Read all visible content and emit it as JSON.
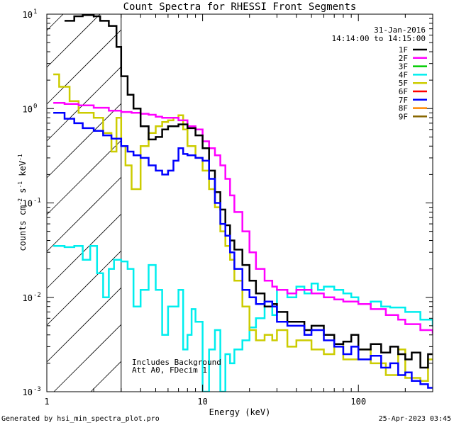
{
  "chart_data": {
    "type": "line",
    "title": "Count Spectra for RHESSI Front Segments",
    "xlabel": "Energy (keV)",
    "ylabel_parts": {
      "base": "counts cm",
      "e1": "-2",
      "mid": " s",
      "e2": "-1",
      "tail": " keV",
      "e3": "-1"
    },
    "x_scale": "log",
    "y_scale": "log",
    "xlim": [
      1,
      300
    ],
    "ylim": [
      0.001,
      10
    ],
    "x_ticks": [
      {
        "value": 1,
        "label": "1"
      },
      {
        "value": 10,
        "label": "10"
      },
      {
        "value": 100,
        "label": "100"
      }
    ],
    "y_ticks": [
      {
        "value": 10,
        "mant": "10",
        "exp": "1"
      },
      {
        "value": 1,
        "mant": "10",
        "exp": "0"
      },
      {
        "value": 0.1,
        "mant": "10",
        "exp": "-1"
      },
      {
        "value": 0.01,
        "mant": "10",
        "exp": "-2"
      },
      {
        "value": 0.001,
        "mant": "10",
        "exp": "-3"
      }
    ],
    "legend_header": [
      "31-Jan-2016",
      "14:14:00 to 14:15:00"
    ],
    "legend_placement": "top-right",
    "attenuator_shading": {
      "from": 1,
      "to": 3,
      "style": "hatched"
    },
    "annotations": [
      "Includes Background",
      "Att A0, FDecim 1"
    ],
    "footer_left": "Generated by hsi_min_spectra_plot.pro",
    "footer_right": "25-Apr-2023 03:45",
    "series": [
      {
        "name": "1F",
        "color": "#000000",
        "points": [
          [
            1.3,
            8.5
          ],
          [
            1.5,
            9.5
          ],
          [
            1.7,
            9.8
          ],
          [
            2.0,
            9.5
          ],
          [
            2.2,
            8.5
          ],
          [
            2.5,
            7.5
          ],
          [
            2.8,
            4.5
          ],
          [
            3.0,
            2.2
          ],
          [
            3.3,
            1.4
          ],
          [
            3.6,
            1.0
          ],
          [
            4.0,
            0.65
          ],
          [
            4.5,
            0.47
          ],
          [
            5.0,
            0.5
          ],
          [
            5.5,
            0.6
          ],
          [
            6.0,
            0.65
          ],
          [
            7.0,
            0.68
          ],
          [
            8.0,
            0.62
          ],
          [
            9.0,
            0.52
          ],
          [
            10,
            0.38
          ],
          [
            11,
            0.22
          ],
          [
            12,
            0.13
          ],
          [
            13,
            0.085
          ],
          [
            14,
            0.058
          ],
          [
            15,
            0.04
          ],
          [
            16,
            0.032
          ],
          [
            18,
            0.022
          ],
          [
            20,
            0.015
          ],
          [
            22,
            0.011
          ],
          [
            25,
            0.008
          ],
          [
            28,
            0.0085
          ],
          [
            30,
            0.007
          ],
          [
            35,
            0.0055
          ],
          [
            40,
            0.0055
          ],
          [
            45,
            0.0045
          ],
          [
            50,
            0.005
          ],
          [
            60,
            0.004
          ],
          [
            70,
            0.0032
          ],
          [
            80,
            0.0034
          ],
          [
            90,
            0.004
          ],
          [
            100,
            0.0028
          ],
          [
            120,
            0.0032
          ],
          [
            140,
            0.0026
          ],
          [
            160,
            0.003
          ],
          [
            180,
            0.0025
          ],
          [
            200,
            0.0022
          ],
          [
            220,
            0.0026
          ],
          [
            250,
            0.0018
          ],
          [
            280,
            0.0025
          ]
        ]
      },
      {
        "name": "2F",
        "color": "#ff00ff",
        "points": [
          [
            1.1,
            1.15
          ],
          [
            1.3,
            1.12
          ],
          [
            1.6,
            1.08
          ],
          [
            2.0,
            1.02
          ],
          [
            2.5,
            0.95
          ],
          [
            3.0,
            0.92
          ],
          [
            3.5,
            0.9
          ],
          [
            4.0,
            0.88
          ],
          [
            4.5,
            0.86
          ],
          [
            5.0,
            0.82
          ],
          [
            5.5,
            0.8
          ],
          [
            6.0,
            0.8
          ],
          [
            7.0,
            0.75
          ],
          [
            8.0,
            0.65
          ],
          [
            9.0,
            0.6
          ],
          [
            10,
            0.45
          ],
          [
            11,
            0.38
          ],
          [
            12,
            0.32
          ],
          [
            13,
            0.25
          ],
          [
            14,
            0.18
          ],
          [
            15,
            0.12
          ],
          [
            16,
            0.08
          ],
          [
            18,
            0.05
          ],
          [
            20,
            0.03
          ],
          [
            22,
            0.02
          ],
          [
            25,
            0.015
          ],
          [
            28,
            0.013
          ],
          [
            30,
            0.012
          ],
          [
            35,
            0.011
          ],
          [
            40,
            0.012
          ],
          [
            50,
            0.011
          ],
          [
            60,
            0.01
          ],
          [
            70,
            0.0095
          ],
          [
            80,
            0.009
          ],
          [
            100,
            0.0085
          ],
          [
            120,
            0.0075
          ],
          [
            150,
            0.0065
          ],
          [
            180,
            0.0058
          ],
          [
            200,
            0.0052
          ],
          [
            250,
            0.0045
          ],
          [
            300,
            0.0042
          ]
        ]
      },
      {
        "name": "3F",
        "color": "#00cc00",
        "points": []
      },
      {
        "name": "4F",
        "color": "#00eeee",
        "points": [
          [
            1.1,
            0.035
          ],
          [
            1.3,
            0.034
          ],
          [
            1.5,
            0.035
          ],
          [
            1.7,
            0.025
          ],
          [
            1.9,
            0.035
          ],
          [
            2.1,
            0.018
          ],
          [
            2.3,
            0.01
          ],
          [
            2.5,
            0.02
          ],
          [
            2.7,
            0.025
          ],
          [
            3.0,
            0.024
          ],
          [
            3.3,
            0.02
          ],
          [
            3.6,
            0.008
          ],
          [
            4.0,
            0.012
          ],
          [
            4.5,
            0.022
          ],
          [
            5.0,
            0.012
          ],
          [
            5.5,
            0.004
          ],
          [
            6.0,
            0.008
          ],
          [
            7.0,
            0.012
          ],
          [
            7.5,
            0.0028
          ],
          [
            8.0,
            0.004
          ],
          [
            8.5,
            0.0075
          ],
          [
            9.0,
            0.0055
          ],
          [
            10,
            0.001
          ],
          [
            11,
            0.0028
          ],
          [
            12,
            0.0045
          ],
          [
            13,
            0.001
          ],
          [
            14,
            0.0025
          ],
          [
            15,
            0.002
          ],
          [
            16,
            0.0028
          ],
          [
            18,
            0.0035
          ],
          [
            20,
            0.0048
          ],
          [
            22,
            0.006
          ],
          [
            25,
            0.009
          ],
          [
            28,
            0.0065
          ],
          [
            30,
            0.012
          ],
          [
            35,
            0.01
          ],
          [
            40,
            0.013
          ],
          [
            45,
            0.011
          ],
          [
            50,
            0.014
          ],
          [
            55,
            0.012
          ],
          [
            60,
            0.013
          ],
          [
            70,
            0.012
          ],
          [
            80,
            0.011
          ],
          [
            90,
            0.01
          ],
          [
            100,
            0.0085
          ],
          [
            120,
            0.009
          ],
          [
            140,
            0.008
          ],
          [
            160,
            0.0078
          ],
          [
            200,
            0.007
          ],
          [
            250,
            0.0058
          ],
          [
            300,
            0.005
          ]
        ]
      },
      {
        "name": "5F",
        "color": "#cccc00",
        "points": [
          [
            1.1,
            2.3
          ],
          [
            1.2,
            1.7
          ],
          [
            1.4,
            1.2
          ],
          [
            1.6,
            0.9
          ],
          [
            2.0,
            0.8
          ],
          [
            2.3,
            0.55
          ],
          [
            2.6,
            0.35
          ],
          [
            2.8,
            0.8
          ],
          [
            3.0,
            0.4
          ],
          [
            3.2,
            0.25
          ],
          [
            3.5,
            0.14
          ],
          [
            4.0,
            0.4
          ],
          [
            4.5,
            0.55
          ],
          [
            5.0,
            0.65
          ],
          [
            5.5,
            0.72
          ],
          [
            6.0,
            0.75
          ],
          [
            6.5,
            0.8
          ],
          [
            7.0,
            0.85
          ],
          [
            7.5,
            0.6
          ],
          [
            8.0,
            0.4
          ],
          [
            9.0,
            0.3
          ],
          [
            10,
            0.22
          ],
          [
            11,
            0.14
          ],
          [
            12,
            0.09
          ],
          [
            13,
            0.05
          ],
          [
            14,
            0.035
          ],
          [
            15,
            0.025
          ],
          [
            16,
            0.015
          ],
          [
            18,
            0.008
          ],
          [
            20,
            0.0045
          ],
          [
            22,
            0.0035
          ],
          [
            25,
            0.004
          ],
          [
            28,
            0.0035
          ],
          [
            30,
            0.0045
          ],
          [
            35,
            0.003
          ],
          [
            40,
            0.0035
          ],
          [
            50,
            0.0028
          ],
          [
            60,
            0.0025
          ],
          [
            70,
            0.0032
          ],
          [
            80,
            0.0022
          ],
          [
            100,
            0.0028
          ],
          [
            120,
            0.002
          ],
          [
            150,
            0.0015
          ],
          [
            180,
            0.0028
          ],
          [
            200,
            0.0014
          ],
          [
            250,
            0.0013
          ],
          [
            280,
            0.0022
          ]
        ]
      },
      {
        "name": "6F",
        "color": "#ff0000",
        "points": []
      },
      {
        "name": "7F",
        "color": "#0000ff",
        "points": [
          [
            1.1,
            0.9
          ],
          [
            1.3,
            0.78
          ],
          [
            1.5,
            0.7
          ],
          [
            1.7,
            0.62
          ],
          [
            2.0,
            0.58
          ],
          [
            2.3,
            0.52
          ],
          [
            2.6,
            0.48
          ],
          [
            3.0,
            0.4
          ],
          [
            3.3,
            0.35
          ],
          [
            3.6,
            0.32
          ],
          [
            4.0,
            0.3
          ],
          [
            4.5,
            0.25
          ],
          [
            5.0,
            0.22
          ],
          [
            5.5,
            0.2
          ],
          [
            6.0,
            0.22
          ],
          [
            6.5,
            0.28
          ],
          [
            7.0,
            0.38
          ],
          [
            7.5,
            0.33
          ],
          [
            8.0,
            0.32
          ],
          [
            9.0,
            0.3
          ],
          [
            10,
            0.28
          ],
          [
            11,
            0.18
          ],
          [
            12,
            0.1
          ],
          [
            13,
            0.06
          ],
          [
            14,
            0.045
          ],
          [
            15,
            0.03
          ],
          [
            16,
            0.02
          ],
          [
            18,
            0.012
          ],
          [
            20,
            0.01
          ],
          [
            22,
            0.0085
          ],
          [
            25,
            0.009
          ],
          [
            28,
            0.008
          ],
          [
            30,
            0.0055
          ],
          [
            35,
            0.005
          ],
          [
            40,
            0.005
          ],
          [
            45,
            0.004
          ],
          [
            50,
            0.0045
          ],
          [
            60,
            0.0035
          ],
          [
            70,
            0.003
          ],
          [
            80,
            0.0025
          ],
          [
            90,
            0.003
          ],
          [
            100,
            0.0022
          ],
          [
            120,
            0.0024
          ],
          [
            140,
            0.0018
          ],
          [
            160,
            0.002
          ],
          [
            180,
            0.0015
          ],
          [
            200,
            0.0016
          ],
          [
            220,
            0.0013
          ],
          [
            250,
            0.0012
          ],
          [
            280,
            0.0011
          ]
        ]
      },
      {
        "name": "8F",
        "color": "#ff8800",
        "points": []
      },
      {
        "name": "9F",
        "color": "#886600",
        "points": []
      }
    ]
  }
}
